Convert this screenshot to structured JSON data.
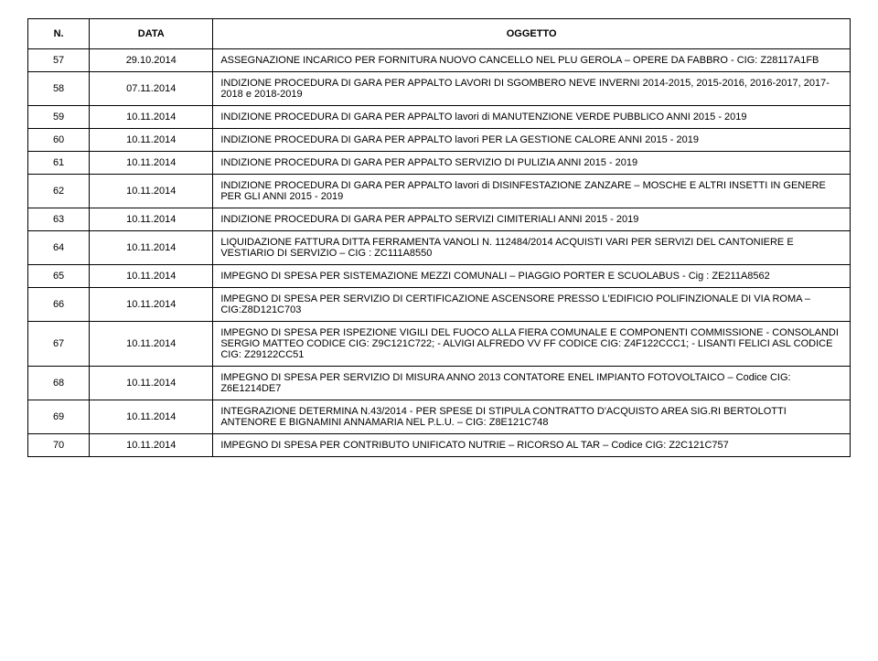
{
  "headers": {
    "n": "N.",
    "data": "DATA",
    "oggetto": "OGGETTO"
  },
  "rows": [
    {
      "n": "57",
      "data": "29.10.2014",
      "oggetto": "ASSEGNAZIONE INCARICO PER FORNITURA NUOVO CANCELLO NEL PLU GEROLA – OPERE DA FABBRO - CIG: Z28117A1FB"
    },
    {
      "n": "58",
      "data": "07.11.2014",
      "oggetto": "INDIZIONE PROCEDURA DI GARA PER APPALTO LAVORI DI SGOMBERO NEVE INVERNI 2014-2015, 2015-2016, 2016-2017, 2017-2018 e 2018-2019"
    },
    {
      "n": "59",
      "data": "10.11.2014",
      "oggetto": "INDIZIONE PROCEDURA DI GARA PER APPALTO lavori di MANUTENZIONE VERDE PUBBLICO ANNI 2015 - 2019"
    },
    {
      "n": "60",
      "data": "10.11.2014",
      "oggetto": "INDIZIONE PROCEDURA DI GARA PER APPALTO lavori PER LA GESTIONE CALORE ANNI 2015 - 2019"
    },
    {
      "n": "61",
      "data": "10.11.2014",
      "oggetto": "INDIZIONE PROCEDURA DI GARA PER APPALTO SERVIZIO DI PULIZIA ANNI 2015 - 2019"
    },
    {
      "n": "62",
      "data": "10.11.2014",
      "oggetto": "INDIZIONE PROCEDURA DI GARA PER APPALTO lavori di DISINFESTAZIONE ZANZARE – MOSCHE E ALTRI INSETTI IN GENERE PER GLI  ANNI 2015 - 2019"
    },
    {
      "n": "63",
      "data": "10.11.2014",
      "oggetto": "INDIZIONE PROCEDURA DI GARA PER APPALTO SERVIZI CIMITERIALI ANNI 2015 - 2019"
    },
    {
      "n": "64",
      "data": "10.11.2014",
      "oggetto": "LIQUIDAZIONE FATTURA DITTA FERRAMENTA VANOLI N. 112484/2014 ACQUISTI VARI PER SERVIZI DEL CANTONIERE E VESTIARIO DI SERVIZIO – CIG : ZC111A8550"
    },
    {
      "n": "65",
      "data": "10.11.2014",
      "oggetto": "IMPEGNO DI SPESA PER SISTEMAZIONE MEZZI COMUNALI – PIAGGIO PORTER E SCUOLABUS - Cig : ZE211A8562"
    },
    {
      "n": "66",
      "data": "10.11.2014",
      "oggetto": "IMPEGNO DI SPESA PER SERVIZIO DI CERTIFICAZIONE ASCENSORE PRESSO L'EDIFICIO POLIFINZIONALE DI VIA ROMA – CIG:Z8D121C703"
    },
    {
      "n": "67",
      "data": "10.11.2014",
      "oggetto": "IMPEGNO DI SPESA  PER ISPEZIONE VIGILI DEL FUOCO ALLA FIERA COMUNALE E COMPONENTI COMMISSIONE                                                                                                                            - CONSOLANDI SERGIO MATTEO CODICE CIG: Z9C121C722;                                                                - ALVIGI ALFREDO VV FF CODICE CIG: Z4F122CCC1;                                                                        - LISANTI FELICI ASL CODICE CIG: Z29122CC51"
    },
    {
      "n": "68",
      "data": "10.11.2014",
      "oggetto": "IMPEGNO DI SPESA  PER SERVIZIO DI MISURA ANNO 2013 CONTATORE ENEL IMPIANTO FOTOVOLTAICO – Codice CIG: Z6E1214DE7"
    },
    {
      "n": "69",
      "data": "10.11.2014",
      "oggetto": "INTEGRAZIONE DETERMINA N.43/2014 - PER SPESE DI STIPULA CONTRATTO D'ACQUISTO AREA SIG.RI BERTOLOTTI ANTENORE E BIGNAMINI ANNAMARIA NEL P.L.U. – CIG: Z8E121C748"
    },
    {
      "n": "70",
      "data": "10.11.2014",
      "oggetto": "IMPEGNO DI SPESA  PER CONTRIBUTO UNIFICATO NUTRIE – RICORSO AL TAR – Codice CIG: Z2C121C757"
    }
  ]
}
